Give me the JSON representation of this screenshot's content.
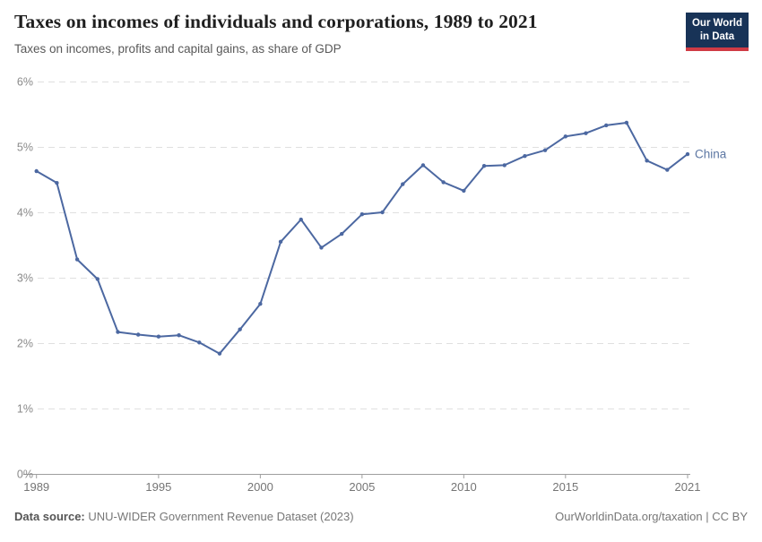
{
  "header": {
    "title": "Taxes on incomes of individuals and corporations, 1989 to 2021",
    "subtitle": "Taxes on incomes, profits and capital gains, as share of GDP",
    "logo": {
      "line1": "Our World",
      "line2": "in Data",
      "bg_color": "#183357",
      "accent_color": "#cf3b45"
    }
  },
  "chart_data": {
    "type": "line",
    "title": "Taxes on incomes of individuals and corporations, 1989 to 2021",
    "subtitle": "Taxes on incomes, profits and capital gains, as share of GDP",
    "xlabel": "",
    "ylabel": "",
    "xlim": [
      1989,
      2021
    ],
    "ylim": [
      0,
      6
    ],
    "grid": "horizontal-dashed",
    "y_ticks": [
      0,
      1,
      2,
      3,
      4,
      5,
      6
    ],
    "y_suffix": "%",
    "x_ticks": [
      1989,
      1995,
      2000,
      2005,
      2010,
      2015,
      2021
    ],
    "series": [
      {
        "name": "China",
        "color": "#4c68a1",
        "label_color": "#5d77a3",
        "x": [
          1989,
          1990,
          1991,
          1992,
          1993,
          1994,
          1995,
          1996,
          1997,
          1998,
          1999,
          2000,
          2001,
          2002,
          2003,
          2004,
          2005,
          2006,
          2007,
          2008,
          2009,
          2010,
          2011,
          2012,
          2013,
          2014,
          2015,
          2016,
          2017,
          2018,
          2019,
          2020,
          2021
        ],
        "values": [
          4.63,
          4.45,
          3.28,
          2.98,
          2.17,
          2.13,
          2.1,
          2.12,
          2.01,
          1.84,
          2.21,
          2.6,
          3.55,
          3.89,
          3.46,
          3.67,
          3.97,
          4.0,
          4.43,
          4.72,
          4.46,
          4.33,
          4.71,
          4.72,
          4.86,
          4.95,
          5.16,
          5.21,
          5.33,
          5.37,
          4.79,
          4.65,
          4.89
        ]
      }
    ],
    "colors": {
      "gridline": "#e0e0e0",
      "axis": "#9e9e9e",
      "y_tick_label": "#8a8a8a",
      "x_tick_label": "#757575"
    }
  },
  "footer": {
    "source_label": "Data source:",
    "source_value": " UNU-WIDER Government Revenue Dataset (2023)",
    "link": "OurWorldinData.org/taxation",
    "separator": " | ",
    "license": "CC BY"
  }
}
